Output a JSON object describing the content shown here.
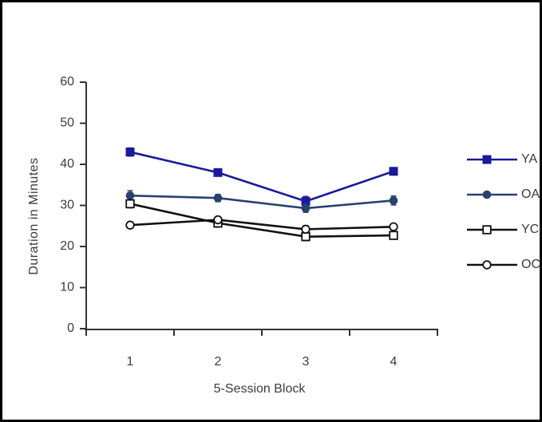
{
  "chart_data": {
    "type": "line",
    "title": "",
    "xlabel": "5-Session Block",
    "ylabel": "Duration in Minutes",
    "categories": [
      1,
      2,
      3,
      4
    ],
    "ylim": [
      0,
      60
    ],
    "yticks": [
      0,
      10,
      20,
      30,
      40,
      50,
      60
    ],
    "grid": false,
    "legend_position": "right",
    "error_bars": true,
    "series": [
      {
        "name": "YA",
        "marker": "filled-square",
        "color": "#1a1a9c",
        "values": [
          43.0,
          38.0,
          31.0,
          38.3
        ],
        "errors": [
          1.0,
          0.7,
          1.2,
          0.9
        ]
      },
      {
        "name": "OA",
        "marker": "filled-circle",
        "color": "#27426f",
        "values": [
          32.4,
          31.8,
          29.3,
          31.2
        ],
        "errors": [
          1.2,
          0.9,
          1.0,
          1.1
        ]
      },
      {
        "name": "YC",
        "marker": "open-square",
        "color": "#111111",
        "values": [
          30.4,
          25.7,
          22.4,
          22.7
        ],
        "errors": [
          1.0,
          1.0,
          1.0,
          0.8
        ]
      },
      {
        "name": "OC",
        "marker": "open-circle",
        "color": "#111111",
        "values": [
          25.2,
          26.5,
          24.2,
          24.8
        ],
        "errors": [
          0.8,
          0.8,
          0.9,
          0.7
        ]
      }
    ]
  },
  "frame": {
    "background": "#ffffff",
    "border_color": "#000000",
    "axis_color": "#333333",
    "text_color": "#3c3c3c"
  }
}
